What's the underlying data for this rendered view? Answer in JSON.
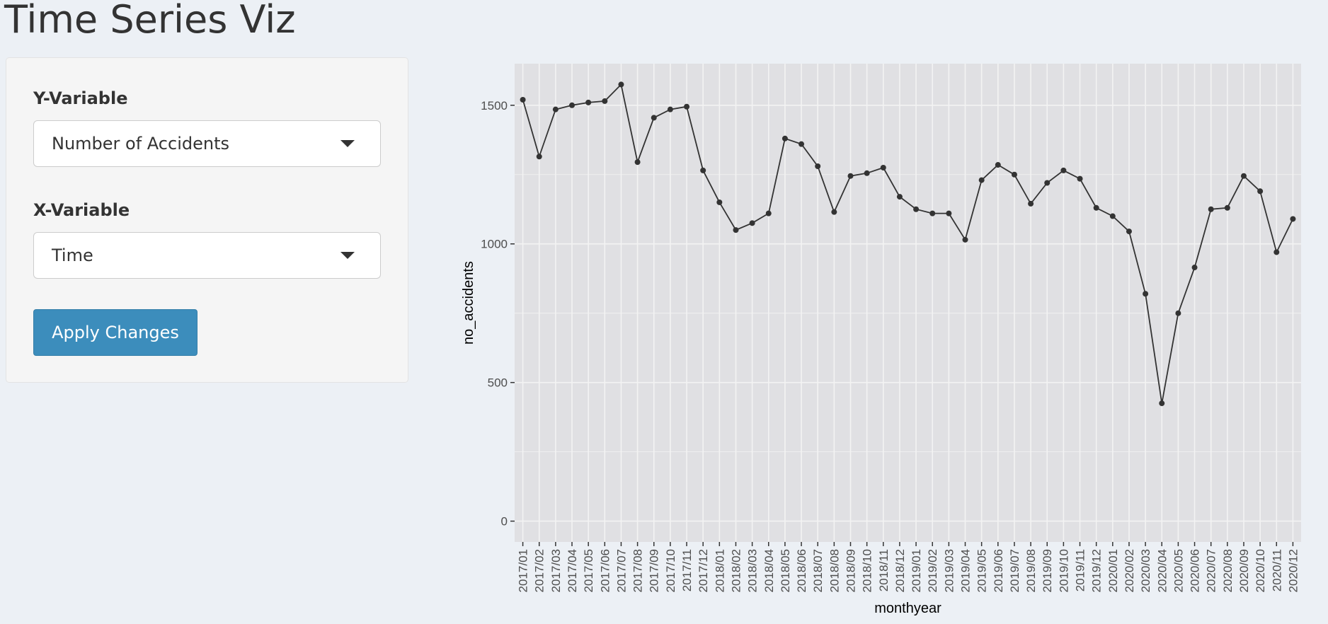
{
  "app": {
    "title": "Time Series Viz"
  },
  "sidebar": {
    "y_variable": {
      "label": "Y-Variable",
      "selected": "Number of Accidents"
    },
    "x_variable": {
      "label": "X-Variable",
      "selected": "Time"
    },
    "apply_button": {
      "label": "Apply Changes"
    }
  },
  "icons": {
    "select_caret": "caret-down-icon"
  },
  "colors": {
    "page_bg": "#ecf0f5",
    "panel_bg": "#f5f5f5",
    "accent": "#3c8dbc",
    "plot_bg": "#e0e0e3",
    "grid": "#f3f3f3",
    "line": "#333333"
  },
  "chart_data": {
    "type": "line",
    "title": "",
    "xlabel": "monthyear",
    "ylabel": "no_accidents",
    "ylim": [
      -75,
      1650
    ],
    "yticks": [
      0,
      500,
      1000,
      1500
    ],
    "categories": [
      "2017/01",
      "2017/02",
      "2017/03",
      "2017/04",
      "2017/05",
      "2017/06",
      "2017/07",
      "2017/08",
      "2017/09",
      "2017/10",
      "2017/11",
      "2017/12",
      "2018/01",
      "2018/02",
      "2018/03",
      "2018/04",
      "2018/05",
      "2018/06",
      "2018/07",
      "2018/08",
      "2018/09",
      "2018/10",
      "2018/11",
      "2018/12",
      "2019/01",
      "2019/02",
      "2019/03",
      "2019/04",
      "2019/05",
      "2019/06",
      "2019/07",
      "2019/08",
      "2019/09",
      "2019/10",
      "2019/11",
      "2019/12",
      "2020/01",
      "2020/02",
      "2020/03",
      "2020/04",
      "2020/05",
      "2020/06",
      "2020/07",
      "2020/08",
      "2020/09",
      "2020/10",
      "2020/11",
      "2020/12"
    ],
    "series": [
      {
        "name": "no_accidents",
        "values": [
          1520,
          1315,
          1485,
          1500,
          1510,
          1515,
          1575,
          1295,
          1455,
          1485,
          1495,
          1265,
          1150,
          1050,
          1075,
          1110,
          1380,
          1360,
          1280,
          1115,
          1245,
          1255,
          1275,
          1170,
          1125,
          1110,
          1110,
          1015,
          1230,
          1285,
          1250,
          1145,
          1220,
          1265,
          1235,
          1130,
          1100,
          1045,
          820,
          425,
          750,
          915,
          1125,
          1130,
          1245,
          1190,
          970,
          1090
        ]
      }
    ],
    "grid": true,
    "legend": "none"
  }
}
